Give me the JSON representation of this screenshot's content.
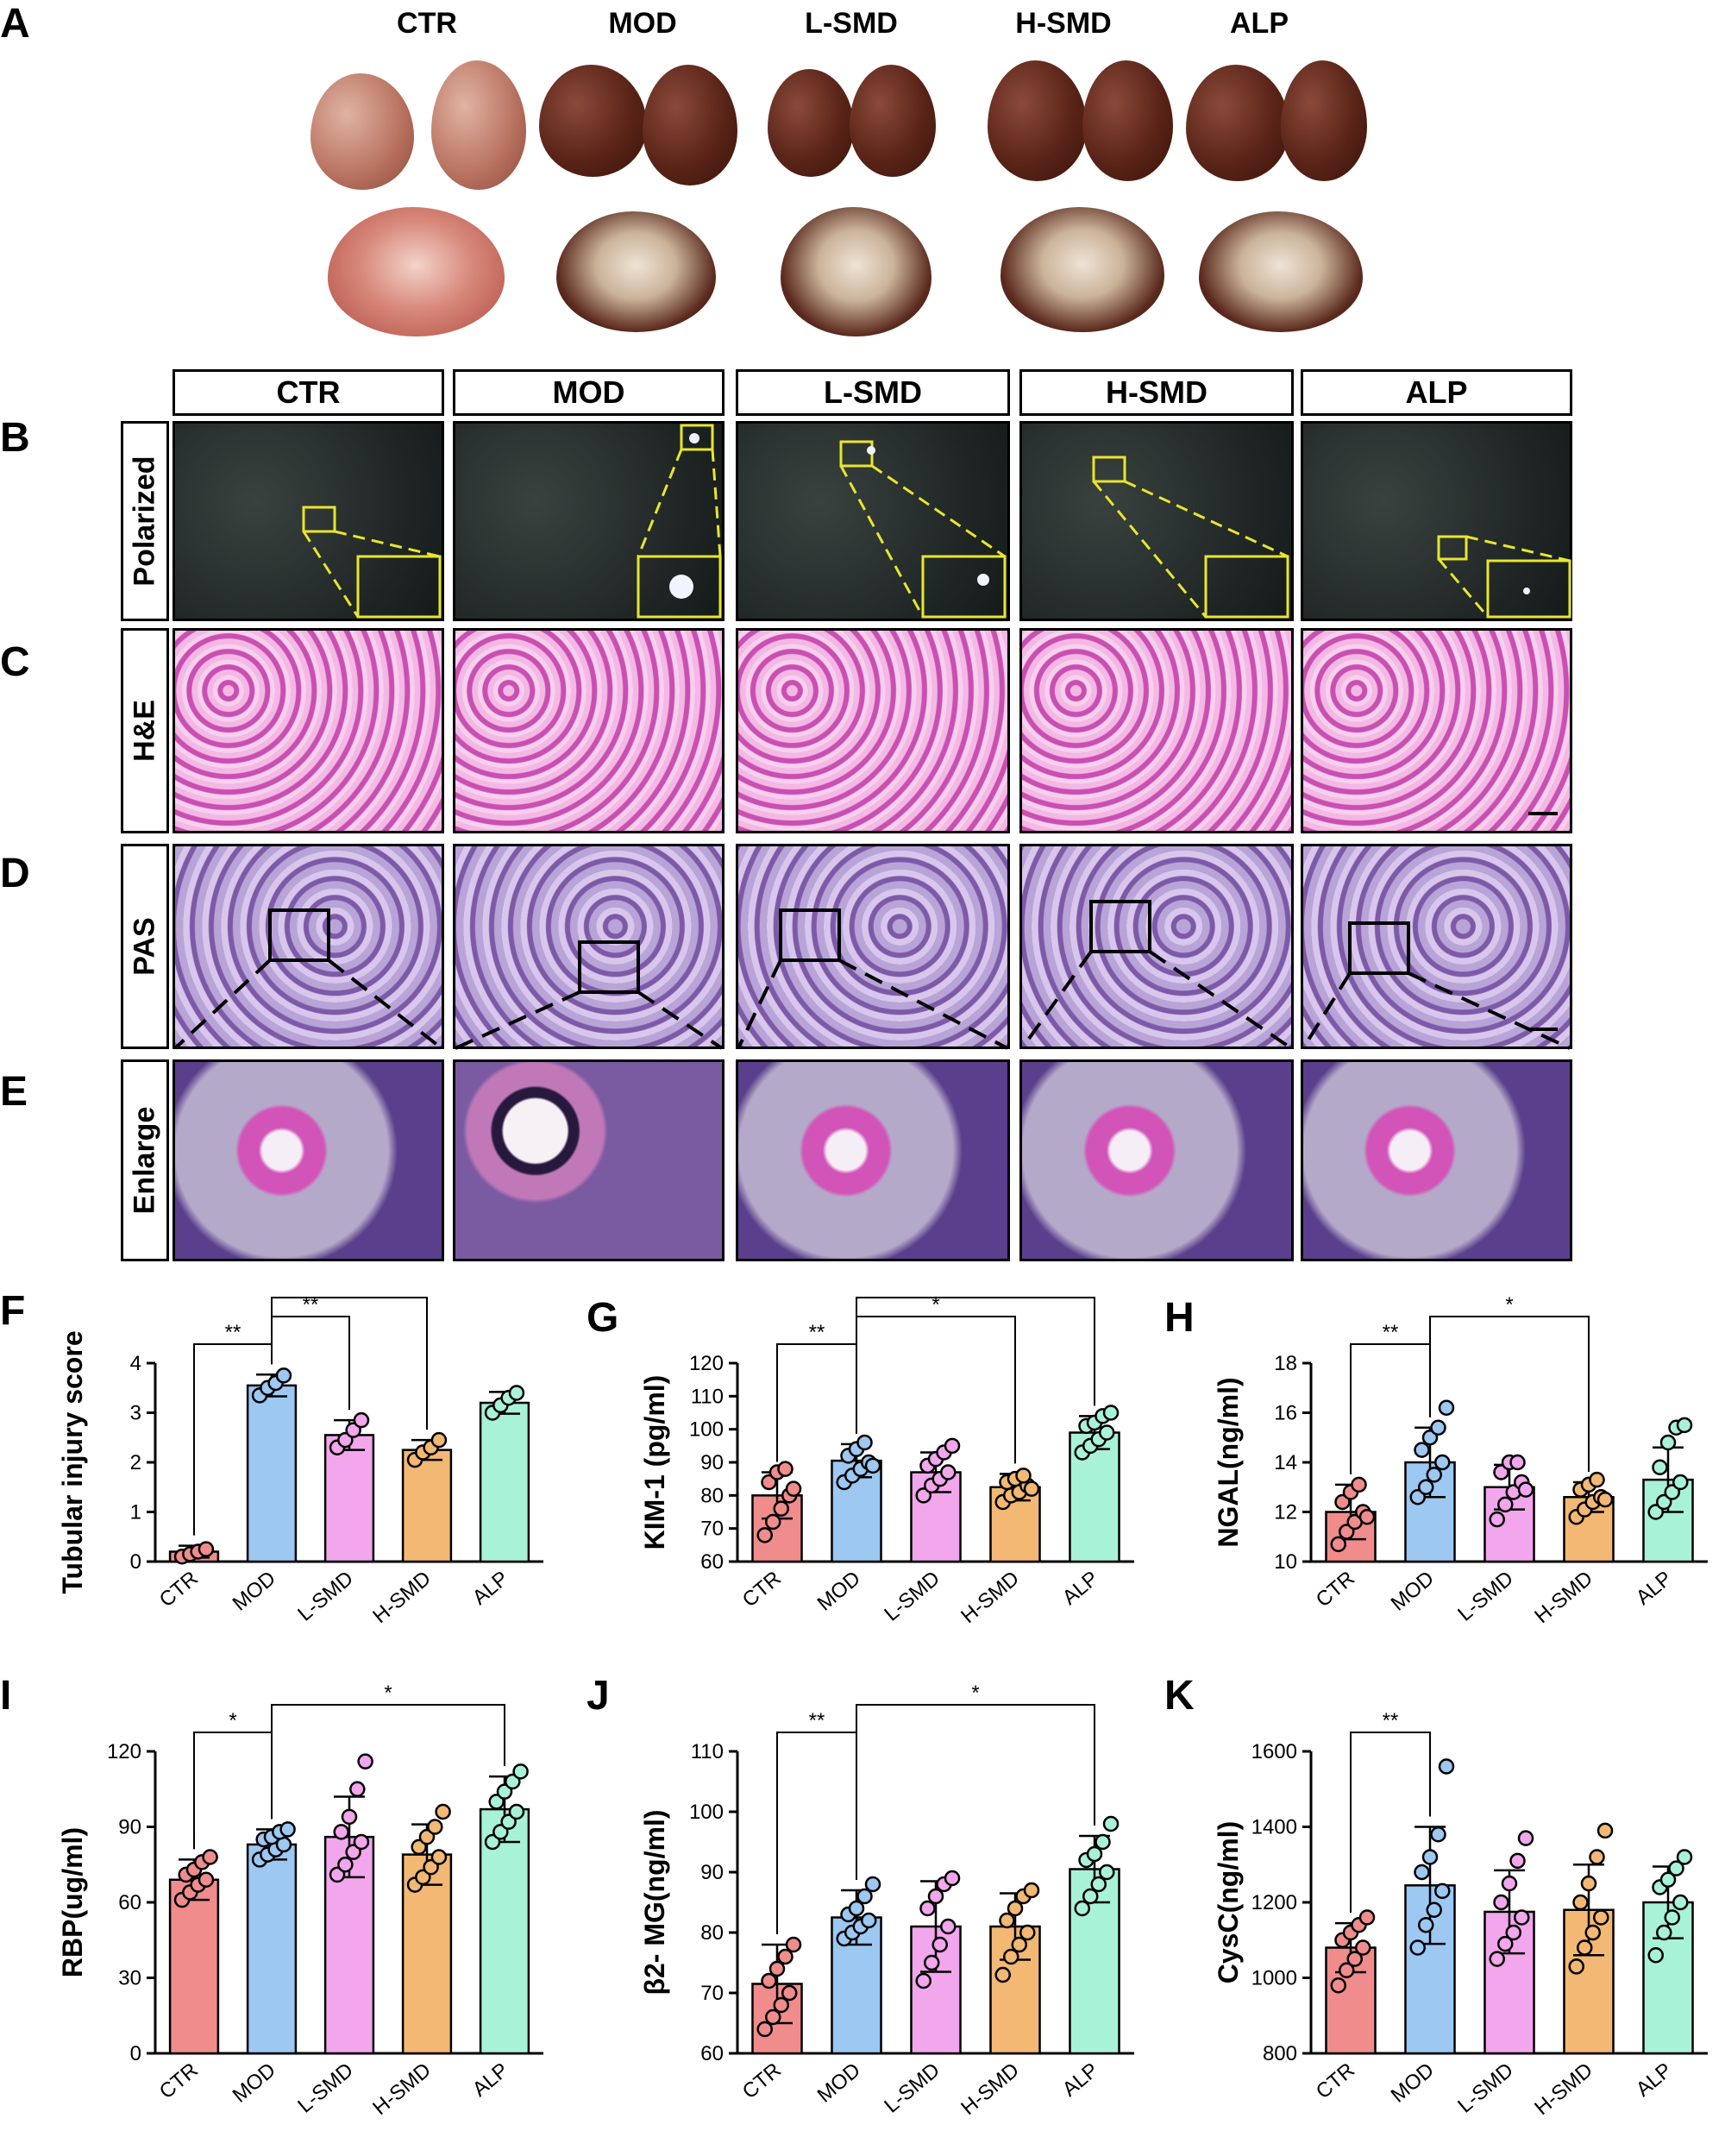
{
  "panel_labels": [
    "A",
    "B",
    "C",
    "D",
    "E",
    "F",
    "G",
    "H",
    "I",
    "J",
    "K"
  ],
  "groups": [
    "CTR",
    "MOD",
    "L-SMD",
    "H-SMD",
    "ALP"
  ],
  "row_labels": {
    "polarized": "Polarized",
    "he": "H&E",
    "pas": "PAS",
    "enlarge": "Enlarge"
  },
  "colors": {
    "CTR": "#f08c8c",
    "MOD": "#9cc8f2",
    "L-SMD": "#f2a6ec",
    "H-SMD": "#f2b874",
    "ALP": "#a8f2d8",
    "bracket": "#000000",
    "zoom_box": "#e8e62c"
  },
  "chart_data": [
    {
      "type": "bar",
      "panel": "F",
      "ylabel": "Tubular injury score",
      "categories": [
        "CTR",
        "MOD",
        "L-SMD",
        "H-SMD",
        "ALP"
      ],
      "values": [
        0.2,
        3.55,
        2.55,
        2.25,
        3.2
      ],
      "sd": [
        0.12,
        0.22,
        0.3,
        0.2,
        0.22
      ],
      "ylim": [
        0,
        4
      ],
      "yticks": [
        0,
        1,
        2,
        3,
        4
      ],
      "points": [
        [
          0.1,
          0.15,
          0.2,
          0.25
        ],
        [
          3.35,
          3.5,
          3.6,
          3.75
        ],
        [
          2.3,
          2.45,
          2.65,
          2.85
        ],
        [
          2.05,
          2.2,
          2.3,
          2.45
        ],
        [
          3.0,
          3.15,
          3.3,
          3.4
        ]
      ],
      "sig": [
        {
          "from": 0,
          "to": 1,
          "label": "**",
          "level": 1
        },
        {
          "from": 1,
          "to": 2,
          "label": "**",
          "level": 2
        },
        {
          "from": 1,
          "to": 3,
          "label": "**",
          "level": 3
        }
      ]
    },
    {
      "type": "bar",
      "panel": "G",
      "ylabel": "KIM-1 (pg/ml)",
      "categories": [
        "CTR",
        "MOD",
        "L-SMD",
        "H-SMD",
        "ALP"
      ],
      "values": [
        80,
        90.5,
        87,
        82.5,
        99
      ],
      "sd": [
        7,
        5,
        6,
        4,
        5
      ],
      "ylim": [
        60,
        120
      ],
      "yticks": [
        60,
        70,
        80,
        90,
        100,
        110,
        120
      ],
      "points": [
        [
          68,
          72,
          76,
          80,
          84,
          87,
          88,
          82
        ],
        [
          84,
          86,
          88,
          90,
          92,
          94,
          96,
          89
        ],
        [
          80,
          83,
          85,
          87,
          89,
          91,
          93,
          95
        ],
        [
          78,
          80,
          81,
          83,
          84,
          85,
          86,
          82
        ],
        [
          93,
          95,
          97,
          99,
          101,
          102,
          104,
          105
        ]
      ],
      "sig": [
        {
          "from": 0,
          "to": 1,
          "label": "**",
          "level": 1
        },
        {
          "from": 1,
          "to": 3,
          "label": "*",
          "level": 2
        },
        {
          "from": 1,
          "to": 4,
          "label": "**",
          "level": 3
        }
      ]
    },
    {
      "type": "bar",
      "panel": "H",
      "ylabel": "NGAL(ng/ml)",
      "categories": [
        "CTR",
        "MOD",
        "L-SMD",
        "H-SMD",
        "ALP"
      ],
      "values": [
        12,
        14,
        13,
        12.6,
        13.3
      ],
      "sd": [
        1.1,
        1.4,
        0.9,
        0.6,
        1.3
      ],
      "ylim": [
        10,
        18
      ],
      "yticks": [
        10,
        12,
        14,
        16,
        18
      ],
      "points": [
        [
          10.7,
          11.2,
          11.6,
          12,
          12.4,
          12.8,
          13.1,
          11.8
        ],
        [
          12.6,
          13,
          13.5,
          14,
          14.5,
          15,
          15.4,
          16.2
        ],
        [
          11.7,
          12.3,
          12.8,
          13.2,
          13.6,
          14,
          14,
          12.9
        ],
        [
          11.8,
          12.1,
          12.4,
          12.6,
          12.9,
          13.1,
          13.3,
          12.5
        ],
        [
          12,
          12.4,
          12.8,
          13.2,
          13.8,
          14.8,
          15.4,
          15.5
        ]
      ],
      "sig": [
        {
          "from": 0,
          "to": 1,
          "label": "**",
          "level": 1
        },
        {
          "from": 1,
          "to": 3,
          "label": "*",
          "level": 2
        }
      ]
    },
    {
      "type": "bar",
      "panel": "I",
      "ylabel": "RBP(ug/ml)",
      "categories": [
        "CTR",
        "MOD",
        "L-SMD",
        "H-SMD",
        "ALP"
      ],
      "values": [
        69,
        83,
        86,
        79,
        97
      ],
      "sd": [
        8,
        6,
        16,
        12,
        13
      ],
      "ylim": [
        0,
        120
      ],
      "yticks": [
        0,
        30,
        60,
        90,
        120
      ],
      "points": [
        [
          61,
          64,
          67,
          69,
          71,
          73,
          76,
          78
        ],
        [
          77,
          79,
          81,
          83,
          85,
          86,
          88,
          89
        ],
        [
          71,
          75,
          80,
          84,
          88,
          94,
          105,
          116
        ],
        [
          67,
          70,
          74,
          78,
          82,
          86,
          90,
          96
        ],
        [
          84,
          88,
          92,
          96,
          100,
          104,
          108,
          112
        ]
      ],
      "sig": [
        {
          "from": 0,
          "to": 1,
          "label": "*",
          "level": 1
        },
        {
          "from": 1,
          "to": 4,
          "label": "*",
          "level": 2
        }
      ]
    },
    {
      "type": "bar",
      "panel": "J",
      "ylabel": "β2- MG(ng/ml)",
      "categories": [
        "CTR",
        "MOD",
        "L-SMD",
        "H-SMD",
        "ALP"
      ],
      "values": [
        71.5,
        82.5,
        81,
        81,
        90.5
      ],
      "sd": [
        6.5,
        4.5,
        7.5,
        5.5,
        5.5
      ],
      "ylim": [
        60,
        110
      ],
      "yticks": [
        60,
        70,
        80,
        90,
        100,
        110
      ],
      "points": [
        [
          64,
          66,
          68,
          70,
          72,
          74,
          76,
          78
        ],
        [
          79,
          80,
          81,
          82,
          83,
          84,
          86,
          88
        ],
        [
          72,
          75,
          78,
          81,
          84,
          86,
          88,
          89
        ],
        [
          73,
          76,
          78,
          80,
          82,
          84,
          86,
          87
        ],
        [
          84,
          86,
          88,
          90,
          92,
          93,
          95,
          98
        ]
      ],
      "sig": [
        {
          "from": 0,
          "to": 1,
          "label": "**",
          "level": 1
        },
        {
          "from": 1,
          "to": 4,
          "label": "*",
          "level": 2
        }
      ]
    },
    {
      "type": "bar",
      "panel": "K",
      "ylabel": "CysC(ng/ml)",
      "categories": [
        "CTR",
        "MOD",
        "L-SMD",
        "H-SMD",
        "ALP"
      ],
      "values": [
        1080,
        1245,
        1175,
        1180,
        1200
      ],
      "sd": [
        65,
        155,
        110,
        120,
        95
      ],
      "ylim": [
        800,
        1600
      ],
      "yticks": [
        800,
        1000,
        1200,
        1400,
        1600
      ],
      "points": [
        [
          980,
          1020,
          1050,
          1080,
          1100,
          1120,
          1140,
          1160
        ],
        [
          1080,
          1140,
          1180,
          1230,
          1280,
          1320,
          1380,
          1560
        ],
        [
          1050,
          1090,
          1120,
          1160,
          1200,
          1250,
          1310,
          1370
        ],
        [
          1030,
          1080,
          1120,
          1160,
          1200,
          1250,
          1320,
          1390
        ],
        [
          1060,
          1120,
          1160,
          1200,
          1240,
          1260,
          1290,
          1320
        ]
      ],
      "sig": [
        {
          "from": 0,
          "to": 1,
          "label": "**",
          "level": 1
        }
      ]
    }
  ]
}
